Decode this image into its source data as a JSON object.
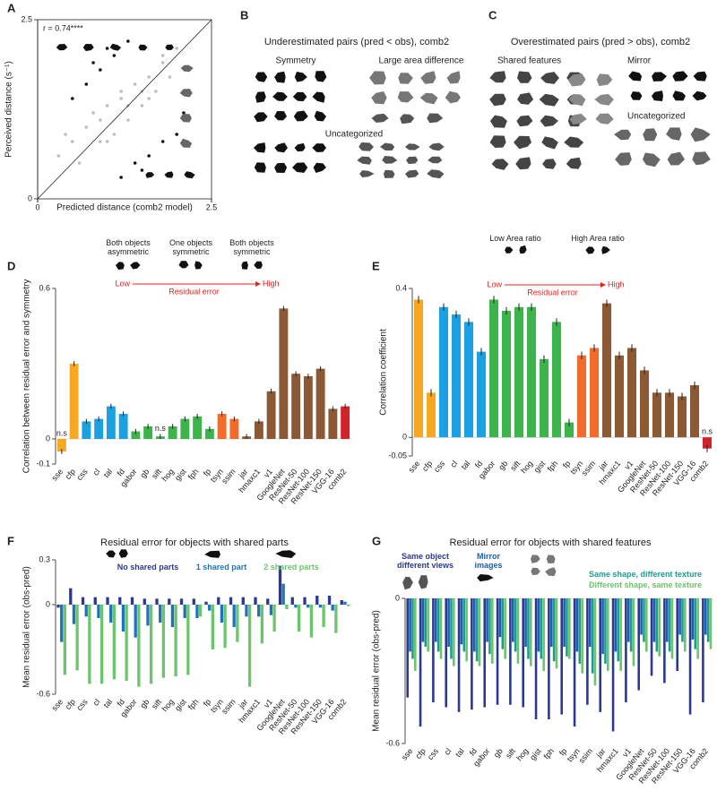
{
  "chart_data": [
    {
      "type": "scatter",
      "panel": "A",
      "annotation": "r = 0.74****",
      "xlabel": "Predicted distance (comb2 model)",
      "ylabel": "Perceived distance (s⁻¹)",
      "xlim": [
        0,
        2.5
      ],
      "ylim": [
        0,
        2.5
      ],
      "xticks": [
        0,
        2.5
      ],
      "yticks": [
        0,
        2.5
      ],
      "series": [
        {
          "color": "#bdbdbd",
          "x": [
            0.3,
            0.5,
            0.6,
            0.8,
            0.9,
            1.0,
            1.1,
            1.2,
            1.3,
            1.4,
            1.5,
            1.6,
            1.7,
            1.8,
            1.9,
            2.0,
            0.7,
            1.0,
            1.2,
            1.5,
            1.8,
            0.4,
            0.9,
            1.3,
            1.6
          ],
          "y": [
            0.6,
            0.8,
            0.5,
            1.2,
            0.8,
            1.3,
            0.9,
            1.5,
            1.1,
            1.6,
            1.3,
            1.7,
            1.5,
            2.0,
            1.7,
            2.1,
            1.0,
            0.8,
            1.4,
            1.5,
            1.9,
            0.9,
            1.1,
            1.3,
            1.4
          ]
        },
        {
          "color": "#111111",
          "x": [
            0.5,
            0.7,
            0.9,
            1.1,
            1.3,
            0.8,
            1.0,
            1.2,
            1.4,
            1.6,
            1.8,
            2.0,
            2.1,
            1.5
          ],
          "y": [
            1.4,
            1.6,
            1.8,
            2.0,
            2.2,
            1.9,
            2.1,
            0.3,
            0.5,
            0.6,
            0.8,
            0.9,
            1.2,
            0.4
          ]
        }
      ]
    },
    {
      "type": "bar",
      "panel": "D",
      "ylabel": "Correlation between residual error and symmetry",
      "header": {
        "labels": [
          "Both objects asymmetric",
          "One objects symmetric",
          "Both objects symmetric"
        ],
        "low": "Low",
        "high": "High",
        "arrow_label": "Residual error"
      },
      "categories": [
        "sse",
        "cfp",
        "css",
        "cl",
        "tal",
        "fd",
        "gabor",
        "gb",
        "sift",
        "hog",
        "gist",
        "fph",
        "fp",
        "tsyn",
        "ssim",
        "jar",
        "hmaxc1",
        "v1",
        "GoogleNet",
        "ResNet-50",
        "ResNet-100",
        "ResNet-150",
        "VGG-16",
        "comb2"
      ],
      "values": [
        -0.05,
        0.3,
        0.07,
        0.08,
        0.13,
        0.1,
        0.03,
        0.05,
        0.01,
        0.05,
        0.08,
        0.09,
        0.04,
        0.1,
        0.08,
        0.01,
        0.07,
        0.19,
        0.52,
        0.26,
        0.25,
        0.28,
        0.12,
        0.13
      ],
      "errors": [
        0.01,
        0.01,
        0.01,
        0.01,
        0.01,
        0.01,
        0.01,
        0.01,
        0.01,
        0.01,
        0.01,
        0.01,
        0.01,
        0.01,
        0.01,
        0.01,
        0.01,
        0.01,
        0.01,
        0.01,
        0.01,
        0.01,
        0.01,
        0.01
      ],
      "colors": [
        "#f7a823",
        "#f7a823",
        "#1ba1e2",
        "#1ba1e2",
        "#1ba1e2",
        "#1ba1e2",
        "#3cb44b",
        "#3cb44b",
        "#3cb44b",
        "#3cb44b",
        "#3cb44b",
        "#3cb44b",
        "#3cb44b",
        "#f26b2a",
        "#f26b2a",
        "#8b5a34",
        "#8b5a34",
        "#8b5a34",
        "#8b5a34",
        "#8b5a34",
        "#8b5a34",
        "#8b5a34",
        "#8b5a34",
        "#d2232a"
      ],
      "annotations": [
        {
          "text": "n.s",
          "x": "sse"
        },
        {
          "text": "n.s",
          "x": "sift"
        }
      ],
      "ylim": [
        -0.1,
        0.6
      ],
      "yticks": [
        -0.1,
        0,
        0.6
      ]
    },
    {
      "type": "bar",
      "panel": "E",
      "ylabel": "Correlation coefficient",
      "header": {
        "labels": [
          "Low Area ratio",
          "High Area ratio"
        ],
        "low": "Low",
        "high": "High",
        "arrow_label": "Residual error"
      },
      "categories": [
        "sse",
        "cfp",
        "css",
        "cl",
        "tal",
        "fd",
        "gabor",
        "gb",
        "sift",
        "hog",
        "gist",
        "fph",
        "fp",
        "tsyn",
        "ssim",
        "jar",
        "hmaxc1",
        "v1",
        "GoogleNet",
        "ResNet-50",
        "ResNet-100",
        "ResNet-150",
        "VGG-16",
        "comb2"
      ],
      "values": [
        0.37,
        0.12,
        0.35,
        0.33,
        0.31,
        0.23,
        0.37,
        0.34,
        0.35,
        0.35,
        0.21,
        0.31,
        0.04,
        0.22,
        0.24,
        0.36,
        0.22,
        0.24,
        0.18,
        0.12,
        0.12,
        0.11,
        0.14,
        -0.03
      ],
      "errors": [
        0.01,
        0.01,
        0.01,
        0.01,
        0.01,
        0.01,
        0.01,
        0.01,
        0.01,
        0.01,
        0.01,
        0.01,
        0.01,
        0.01,
        0.01,
        0.01,
        0.01,
        0.01,
        0.01,
        0.01,
        0.01,
        0.01,
        0.01,
        0.01
      ],
      "colors": [
        "#f7a823",
        "#f7a823",
        "#1ba1e2",
        "#1ba1e2",
        "#1ba1e2",
        "#1ba1e2",
        "#3cb44b",
        "#3cb44b",
        "#3cb44b",
        "#3cb44b",
        "#3cb44b",
        "#3cb44b",
        "#3cb44b",
        "#f26b2a",
        "#f26b2a",
        "#8b5a34",
        "#8b5a34",
        "#8b5a34",
        "#8b5a34",
        "#8b5a34",
        "#8b5a34",
        "#8b5a34",
        "#8b5a34",
        "#d2232a"
      ],
      "annotations": [
        {
          "text": "n.s",
          "x": "comb2"
        }
      ],
      "ylim": [
        -0.05,
        0.4
      ],
      "yticks": [
        -0.05,
        0,
        0.4
      ]
    },
    {
      "type": "grouped-bar",
      "panel": "F",
      "title": "Residual error for objects with shared parts",
      "ylabel": "Mean residual error (obs-pred)",
      "categories": [
        "sse",
        "cfp",
        "css",
        "cl",
        "tal",
        "fd",
        "gabor",
        "gb",
        "sift",
        "hog",
        "gist",
        "fph",
        "fp",
        "tsyn",
        "ssim",
        "jar",
        "hmaxc1",
        "v1",
        "GoogleNet",
        "ResNet-50",
        "ResNet-100",
        "ResNet-150",
        "VGG-16",
        "comb2"
      ],
      "series": [
        {
          "name": "No shared parts",
          "color": "#2b3990",
          "values": [
            -0.02,
            0.11,
            0.05,
            0.05,
            0.05,
            0.05,
            0.05,
            0.04,
            0.04,
            0.04,
            0.04,
            0.04,
            0.02,
            0.05,
            0.05,
            0.05,
            0.05,
            0.04,
            0.26,
            0.05,
            0.05,
            0.06,
            0.06,
            0.03
          ]
        },
        {
          "name": "1 shared part",
          "color": "#1c75bc",
          "values": [
            -0.25,
            -0.13,
            -0.08,
            -0.09,
            -0.12,
            -0.18,
            -0.22,
            -0.14,
            -0.12,
            -0.15,
            -0.09,
            -0.09,
            -0.04,
            -0.12,
            -0.15,
            -0.08,
            -0.08,
            -0.07,
            0.14,
            -0.02,
            -0.02,
            -0.02,
            -0.04,
            0.02
          ]
        },
        {
          "name": "2 shared parts",
          "color": "#6cc56a",
          "values": [
            -0.47,
            -0.44,
            -0.53,
            -0.53,
            -0.5,
            -0.51,
            -0.55,
            -0.53,
            -0.49,
            -0.48,
            -0.47,
            -0.08,
            -0.3,
            -0.29,
            -0.25,
            -0.55,
            -0.26,
            -0.18,
            -0.03,
            -0.18,
            -0.22,
            -0.15,
            -0.19,
            -0.01
          ]
        }
      ],
      "ylim": [
        -0.6,
        0.3
      ],
      "yticks": [
        -0.6,
        0,
        0.3
      ]
    },
    {
      "type": "grouped-bar",
      "panel": "G",
      "title": "Residual error for objects with shared features",
      "ylabel": "Mean residual error (obs-pred)",
      "categories": [
        "sse",
        "cfp",
        "css",
        "cl",
        "tal",
        "fd",
        "gabor",
        "gb",
        "sift",
        "hog",
        "gist",
        "fph",
        "fp",
        "tsyn",
        "ssim",
        "jar",
        "hmaxc1",
        "v1",
        "GoogleNet",
        "ResNet-50",
        "ResNet-100",
        "ResNet-150",
        "VGG-16",
        "comb2"
      ],
      "series": [
        {
          "name": "Same object different views",
          "color": "#2b3990",
          "values": [
            -0.41,
            -0.53,
            -0.43,
            -0.45,
            -0.47,
            -0.46,
            -0.45,
            -0.44,
            -0.44,
            -0.45,
            -0.5,
            -0.5,
            -0.48,
            -0.53,
            -0.44,
            -0.47,
            -0.55,
            -0.43,
            -0.38,
            -0.32,
            -0.35,
            -0.3,
            -0.48,
            -0.43
          ]
        },
        {
          "name": "Mirror images",
          "color": "#1c5fae",
          "values": [
            -0.22,
            -0.18,
            -0.18,
            -0.2,
            -0.19,
            -0.22,
            -0.18,
            -0.16,
            -0.18,
            -0.2,
            -0.22,
            -0.2,
            -0.2,
            -0.22,
            -0.2,
            -0.23,
            -0.22,
            -0.18,
            -0.15,
            -0.18,
            -0.18,
            -0.15,
            -0.17,
            -0.15
          ]
        },
        {
          "name": "Same shape, different texture",
          "color": "#1a9d94",
          "values": [
            -0.25,
            -0.2,
            -0.22,
            -0.25,
            -0.22,
            -0.26,
            -0.23,
            -0.21,
            -0.22,
            -0.25,
            -0.25,
            -0.26,
            -0.24,
            -0.27,
            -0.31,
            -0.27,
            -0.26,
            -0.22,
            -0.18,
            -0.22,
            -0.22,
            -0.18,
            -0.21,
            -0.18
          ]
        },
        {
          "name": "Different shape, same texture",
          "color": "#6cc56a",
          "values": [
            -0.3,
            -0.22,
            -0.25,
            -0.28,
            -0.26,
            -0.28,
            -0.27,
            -0.25,
            -0.27,
            -0.28,
            -0.3,
            -0.29,
            -0.25,
            -0.31,
            -0.36,
            -0.3,
            -0.3,
            -0.28,
            -0.22,
            -0.24,
            -0.25,
            -0.22,
            -0.25,
            -0.21
          ]
        }
      ],
      "ylim": [
        -0.6,
        0
      ],
      "yticks": [
        -0.6,
        0
      ]
    }
  ],
  "image_panels": [
    {
      "panel": "B",
      "title": "Underestimated pairs (pred < obs), comb2",
      "groups": [
        "Symmetry",
        "Large area difference",
        "Uncategorized"
      ]
    },
    {
      "panel": "C",
      "title": "Overestimated pairs (pred > obs), comb2",
      "groups": [
        "Shared features",
        "Mirror",
        "Uncategorized"
      ]
    }
  ]
}
